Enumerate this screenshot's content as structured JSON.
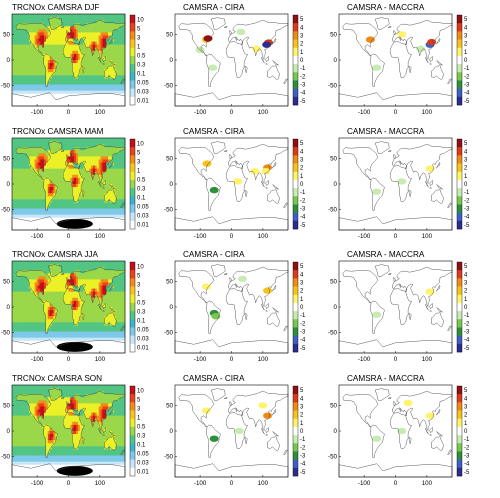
{
  "colors": {
    "field_palette": [
      "#ffffff",
      "#c7e6f7",
      "#7ec9ea",
      "#3fb3c9",
      "#52c583",
      "#9ad84a",
      "#ecf127",
      "#f9c51c",
      "#f38c17",
      "#e8431a",
      "#c20f1a"
    ],
    "diff_palette": [
      "#2b2e8f",
      "#3e5fc6",
      "#2d8f3a",
      "#78c850",
      "#c8ebb1",
      "#ffffff",
      "#fff36b",
      "#f7c21b",
      "#f08a16",
      "#dc3a1a",
      "#8e1015"
    ],
    "coastline": "#444444",
    "antarctic_mask": "#000000"
  },
  "rows": [
    {
      "season": "DJF",
      "panels": [
        {
          "kind": "field",
          "title": "TRCNOx CAMSRA DJF"
        },
        {
          "kind": "diff",
          "title": "CAMSRA -  CIRA"
        },
        {
          "kind": "diff",
          "title": "CAMSRA - MACCRA"
        }
      ]
    },
    {
      "season": "MAM",
      "panels": [
        {
          "kind": "field",
          "title": "TRCNOx CAMSRA MAM"
        },
        {
          "kind": "diff",
          "title": "CAMSRA - CIRA"
        },
        {
          "kind": "diff",
          "title": "CAMSRA - MACCRA"
        }
      ]
    },
    {
      "season": "JJA",
      "panels": [
        {
          "kind": "field",
          "title": "TRCNOx CAMSRA JJA"
        },
        {
          "kind": "diff",
          "title": "CAMSRA - CIRA"
        },
        {
          "kind": "diff",
          "title": "CAMSRA - MACCRA"
        }
      ]
    },
    {
      "season": "SON",
      "panels": [
        {
          "kind": "field",
          "title": "TRCNOx CAMSRA SON"
        },
        {
          "kind": "diff",
          "title": "CAMSRA - CIRA"
        },
        {
          "kind": "diff",
          "title": "CAMSRA - MACCRA"
        }
      ]
    }
  ],
  "axes": {
    "lon_ticks": [
      "-100",
      "0",
      "100"
    ],
    "lat_ticks": [
      "50",
      "0",
      "-50"
    ]
  },
  "colorbars": {
    "field_ticks": [
      "10",
      "5",
      "3",
      "1",
      "0.5",
      "0.3",
      "0.1",
      "0.05",
      "0.03",
      "0.01"
    ],
    "diff_ticks": [
      "5",
      "4",
      "3",
      "2",
      "1",
      "0",
      "-1",
      "-2",
      "-3",
      "-4",
      "-5"
    ]
  }
}
